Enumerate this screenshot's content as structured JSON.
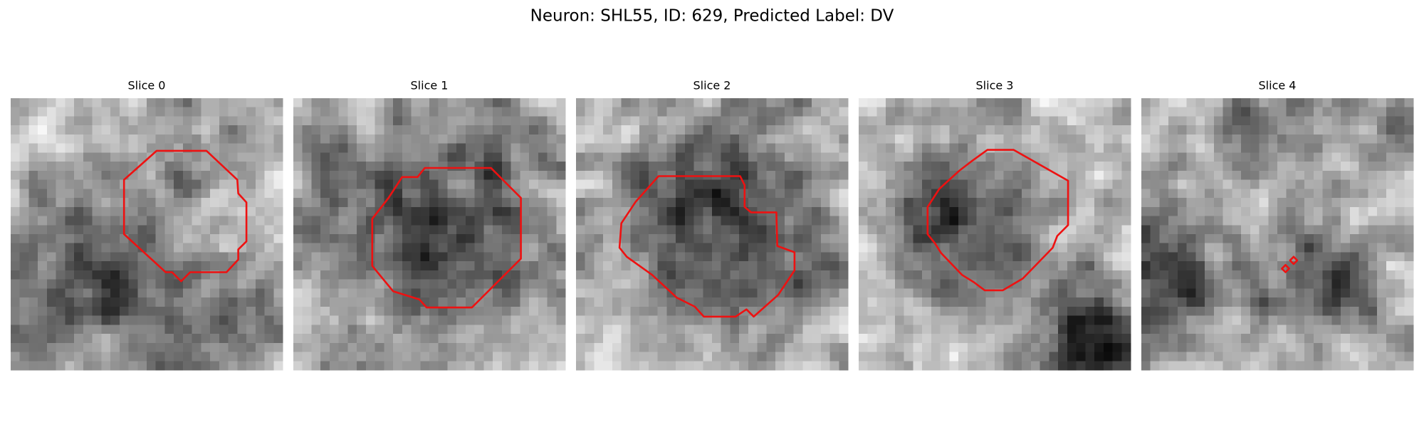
{
  "header": {
    "title": "Neuron: SHL55, ID: 629, Predicted Label: DV"
  },
  "panels": [
    {
      "title": "Slice 0"
    },
    {
      "title": "Slice 1"
    },
    {
      "title": "Slice 2"
    },
    {
      "title": "Slice 3"
    },
    {
      "title": "Slice 4"
    }
  ]
}
